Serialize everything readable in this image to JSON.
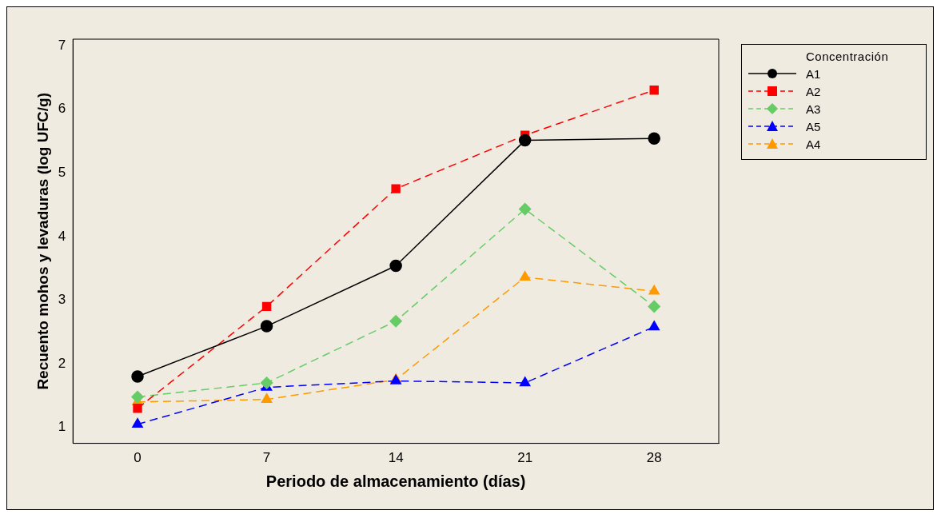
{
  "chart_data": {
    "type": "line",
    "xlabel": "Periodo de almacenamiento (días)",
    "ylabel": "Recuento mohos y levaduras (log UFC/g)",
    "legend_title": "Concentración",
    "x": [
      0,
      7,
      14,
      21,
      28
    ],
    "xlim": [
      -3.5,
      31.5
    ],
    "xticks": [
      0,
      7,
      14,
      21,
      28
    ],
    "ylim": [
      0.75,
      7.1
    ],
    "yticks": [
      1,
      2,
      3,
      4,
      5,
      6,
      7
    ],
    "grid": false,
    "legend": "top right",
    "series": [
      {
        "name": "A1",
        "color": "#000000",
        "marker": "circle",
        "line_style": "solid",
        "values": [
          1.8,
          2.59,
          3.54,
          5.51,
          5.54
        ]
      },
      {
        "name": "A2",
        "color": "#ff0000",
        "marker": "square",
        "line_style": "dashed",
        "values": [
          1.3,
          2.9,
          4.75,
          5.59,
          6.3
        ]
      },
      {
        "name": "A3",
        "color": "#66cc66",
        "marker": "diamond",
        "line_style": "dashed",
        "values": [
          1.48,
          1.7,
          2.67,
          4.43,
          2.9
        ]
      },
      {
        "name": "A5",
        "color": "#0000ff",
        "marker": "triangle",
        "line_style": "dashed",
        "values": [
          1.05,
          1.63,
          1.73,
          1.7,
          2.58
        ]
      },
      {
        "name": "A4",
        "color": "#ff9900",
        "marker": "triangle",
        "line_style": "dashed",
        "values": [
          1.4,
          1.44,
          1.75,
          3.36,
          3.14
        ]
      }
    ]
  }
}
